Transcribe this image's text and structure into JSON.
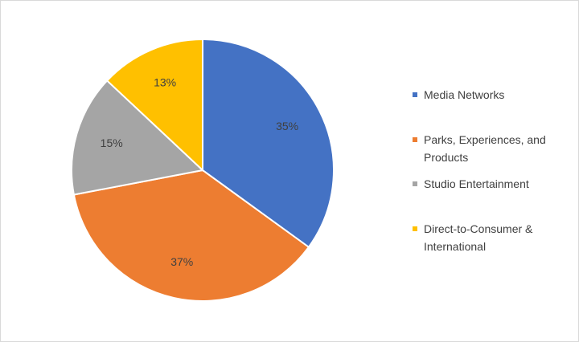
{
  "chart_data": {
    "type": "pie",
    "title": "",
    "categories": [
      "Media Networks",
      "Parks, Experiences, and Products",
      "Studio Entertainment",
      "Direct-to-Consumer & International"
    ],
    "values": [
      35,
      37,
      15,
      13
    ],
    "labels": [
      "35%",
      "37%",
      "15%",
      "13%"
    ],
    "colors": [
      "#4472c4",
      "#ed7d31",
      "#a5a5a5",
      "#ffc000"
    ],
    "start_angle_deg": 0,
    "direction": "clockwise",
    "legend_position": "right"
  }
}
